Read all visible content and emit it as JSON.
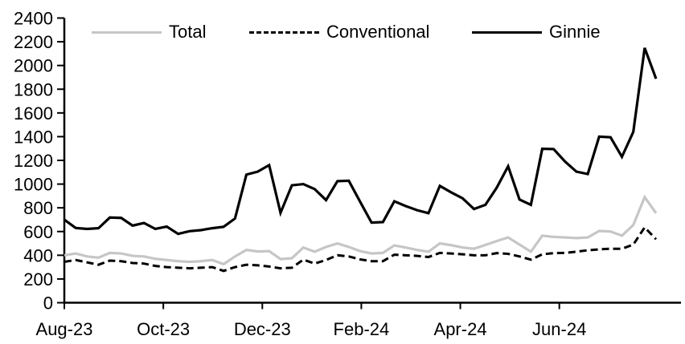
{
  "chart_data": {
    "type": "line",
    "title": "",
    "grid": false,
    "legend_position": "top",
    "x_axis": {
      "label": "",
      "frequency": "weekly",
      "tick_labels": [
        "Aug-23",
        "Oct-23",
        "Dec-23",
        "Feb-24",
        "Apr-24",
        "Jun-24"
      ],
      "tick_week_positions": [
        0,
        8.7,
        17.4,
        26.1,
        34.8,
        43.5
      ],
      "range_note": "weekly observations, Aug-2023 through mid-Aug-2024 (53 points)"
    },
    "y_axis": {
      "label": "",
      "min": 0,
      "max": 2400,
      "tick_step": 200,
      "ticks": [
        0,
        200,
        400,
        600,
        800,
        1000,
        1200,
        1400,
        1600,
        1800,
        2000,
        2200,
        2400
      ]
    },
    "series": [
      {
        "name": "Total",
        "color": "#c6c6c6",
        "style": "solid",
        "width": 3.2,
        "values": [
          400,
          415,
          390,
          380,
          420,
          415,
          395,
          390,
          370,
          360,
          350,
          345,
          350,
          360,
          325,
          390,
          445,
          432,
          435,
          368,
          375,
          465,
          430,
          470,
          500,
          470,
          435,
          415,
          420,
          483,
          465,
          445,
          430,
          500,
          485,
          465,
          455,
          487,
          520,
          550,
          490,
          430,
          565,
          555,
          550,
          545,
          550,
          605,
          600,
          565,
          655,
          890,
          755
        ]
      },
      {
        "name": "Conventional",
        "color": "#000000",
        "style": "dashed",
        "width": 3,
        "values": [
          345,
          360,
          340,
          320,
          355,
          350,
          335,
          330,
          310,
          300,
          295,
          290,
          295,
          300,
          268,
          300,
          320,
          315,
          305,
          290,
          295,
          363,
          330,
          360,
          400,
          390,
          365,
          350,
          350,
          405,
          400,
          395,
          385,
          420,
          415,
          408,
          400,
          400,
          418,
          412,
          390,
          363,
          408,
          418,
          420,
          430,
          442,
          450,
          455,
          455,
          490,
          635,
          535
        ]
      },
      {
        "name": "Ginnie",
        "color": "#000000",
        "style": "solid",
        "width": 3.2,
        "values": [
          700,
          630,
          622,
          628,
          718,
          715,
          650,
          672,
          622,
          642,
          580,
          603,
          612,
          628,
          640,
          710,
          1080,
          1105,
          1160,
          758,
          990,
          1000,
          958,
          865,
          1025,
          1028,
          850,
          675,
          680,
          855,
          815,
          780,
          755,
          985,
          930,
          880,
          790,
          825,
          970,
          1150,
          870,
          825,
          1298,
          1295,
          1190,
          1105,
          1085,
          1400,
          1395,
          1230,
          1440,
          2148,
          1888
        ]
      }
    ]
  }
}
